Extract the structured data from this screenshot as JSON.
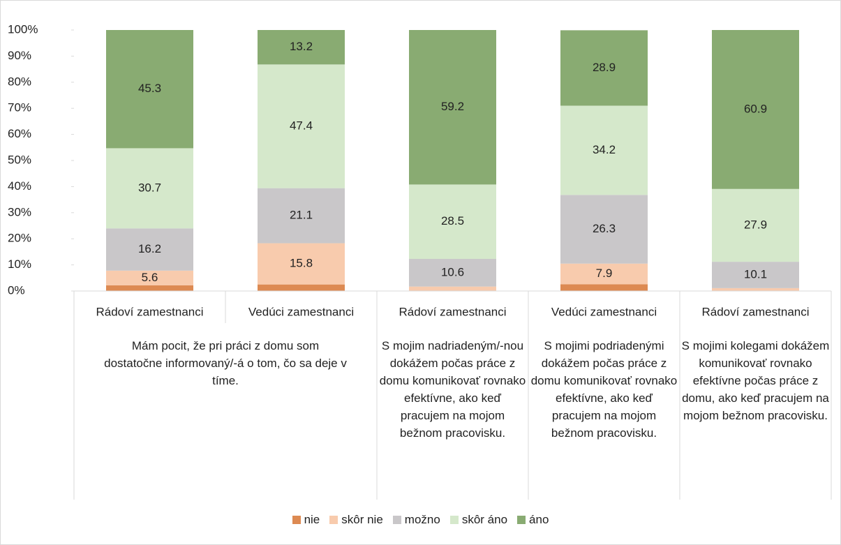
{
  "chart_data": {
    "type": "stacked_bar_100",
    "groups": [
      {
        "label": "Mám pocit, že pri práci z domu som dostatočne informovaný/-á o tom, čo sa deje v tíme.",
        "categories": [
          "Rádoví zamestnanci",
          "Vedúci zamestnanci"
        ]
      },
      {
        "label": "S mojim nadriadeným/-nou dokážem počas práce z domu komunikovať rovnako efektívne, ako keď pracujem na mojom bežnom pracovisku.",
        "categories": [
          "Rádoví zamestnanci"
        ]
      },
      {
        "label": "S mojimi podriadenými dokážem počas práce z domu komunikovať rovnako efektívne, ako keď pracujem na mojom bežnom pracovisku.",
        "categories": [
          "Vedúci zamestnanci"
        ]
      },
      {
        "label": "S mojimi kolegami dokážem komunikovať rovnako efektívne počas práce z domu, ako keď pracujem na mojom bežnom pracovisku.",
        "categories": [
          "Rádoví zamestnanci"
        ]
      }
    ],
    "series": [
      {
        "name": "nie",
        "color": "#dd8a52",
        "values": [
          2.2,
          2.5,
          0,
          2.6,
          0
        ]
      },
      {
        "name": "skôr nie",
        "color": "#f8cbad",
        "values": [
          5.6,
          15.8,
          1.7,
          7.9,
          1.1
        ]
      },
      {
        "name": "možno",
        "color": "#c9c7c9",
        "values": [
          16.2,
          21.1,
          10.6,
          26.3,
          10.1
        ]
      },
      {
        "name": "skôr áno",
        "color": "#d5e8cb",
        "values": [
          30.7,
          47.4,
          28.5,
          34.2,
          27.9
        ]
      },
      {
        "name": "áno",
        "color": "#89ab72",
        "values": [
          45.3,
          13.2,
          59.2,
          28.9,
          60.9
        ]
      }
    ],
    "ylim": [
      0,
      100
    ],
    "yticks": [
      {
        "value": 0,
        "label": "0%"
      },
      {
        "value": 10,
        "label": "10%"
      },
      {
        "value": 20,
        "label": "20%"
      },
      {
        "value": 30,
        "label": "30%"
      },
      {
        "value": 40,
        "label": "40%"
      },
      {
        "value": 50,
        "label": "50%"
      },
      {
        "value": 60,
        "label": "60%"
      },
      {
        "value": 70,
        "label": "70%"
      },
      {
        "value": 80,
        "label": "80%"
      },
      {
        "value": 90,
        "label": "90%"
      },
      {
        "value": 100,
        "label": "100%"
      }
    ],
    "legend": "bottom"
  }
}
